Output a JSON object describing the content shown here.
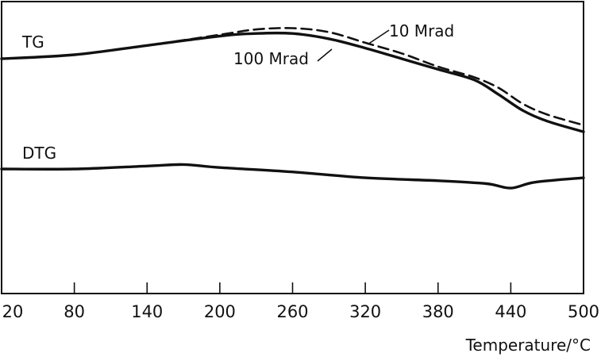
{
  "chart_data": {
    "type": "line",
    "title": "",
    "xlabel": "Temperature/°C",
    "ylabel": "",
    "xlim": [
      20,
      500
    ],
    "xticks": [
      "20",
      "80",
      "140",
      "200",
      "260",
      "320",
      "380",
      "440",
      "500"
    ],
    "grid": false,
    "series": [
      {
        "name": "10 Mrad",
        "group": "TG",
        "style": "dashed",
        "x": [
          20,
          80,
          140,
          200,
          230,
          260,
          290,
          320,
          350,
          380,
          410,
          430,
          450,
          470,
          500
        ],
        "y": [
          40,
          41.5,
          45,
          49,
          51,
          51.5,
          50,
          46,
          42,
          37,
          33,
          29,
          23,
          19,
          15
        ]
      },
      {
        "name": "100 Mrad",
        "group": "TG",
        "style": "solid",
        "x": [
          20,
          80,
          140,
          200,
          230,
          260,
          290,
          320,
          350,
          380,
          410,
          430,
          450,
          470,
          500
        ],
        "y": [
          40,
          41.5,
          45,
          48.5,
          49.5,
          49.5,
          47.5,
          44,
          40,
          36,
          32,
          26.5,
          20.5,
          16.5,
          12.5
        ]
      },
      {
        "name": "DTG",
        "group": "DTG",
        "style": "solid",
        "x": [
          20,
          80,
          140,
          170,
          200,
          260,
          320,
          380,
          420,
          440,
          460,
          500
        ],
        "y": [
          0,
          0,
          1,
          1.5,
          0.5,
          -1,
          -3,
          -4,
          -5,
          -6.5,
          -4.5,
          -3
        ]
      }
    ],
    "curve_labels": {
      "tg": "TG",
      "dtg": "DTG",
      "dose_10": "10 Mrad",
      "dose_100": "100 Mrad"
    },
    "colors": {
      "line": "#111111",
      "background": "#ffffff"
    }
  }
}
